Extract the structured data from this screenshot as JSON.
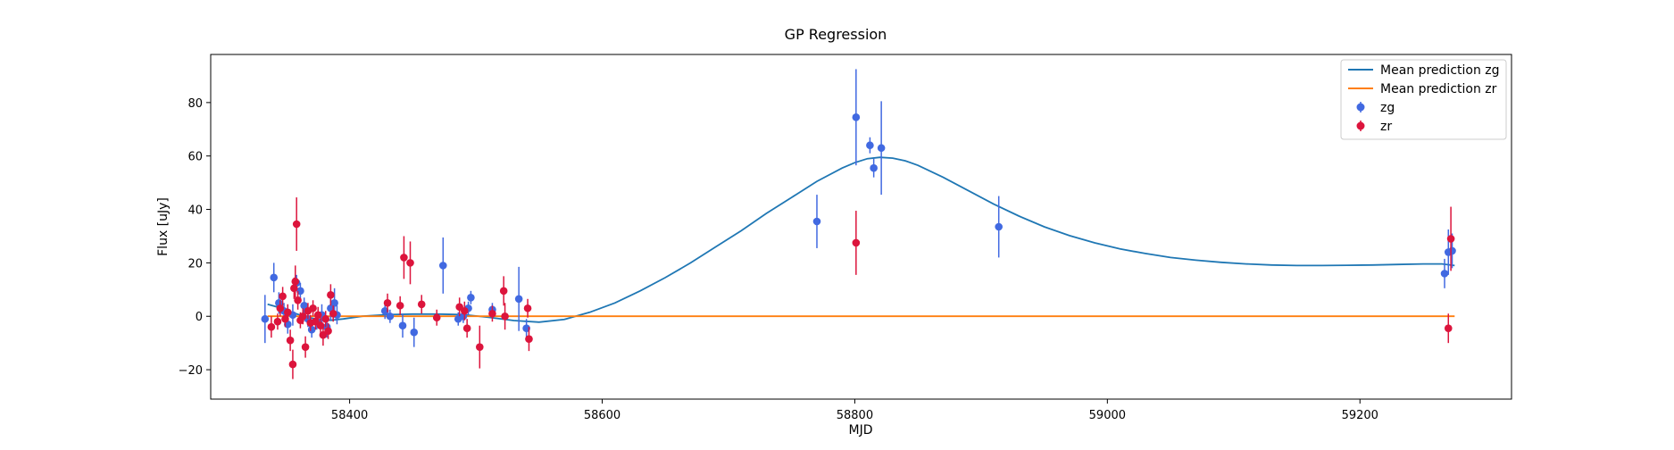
{
  "chart_data": {
    "type": "scatter",
    "title": "GP Regression",
    "xlabel": "MJD",
    "ylabel": "Flux [uJy]",
    "xlim": [
      58290,
      59320
    ],
    "ylim": [
      -31,
      98
    ],
    "x_ticks": [
      58400,
      58600,
      58800,
      59000,
      59200
    ],
    "y_ticks": [
      -20,
      0,
      20,
      40,
      60,
      80
    ],
    "grid": false,
    "legend_position": "top-right",
    "legend": [
      "Mean prediction zg",
      "Mean prediction zr",
      "zg",
      "zr"
    ],
    "colors": {
      "zg_line": "#1f77b4",
      "zr_line": "#ff7f0e",
      "zg_points": "#4169e1",
      "zr_points": "#dc143c"
    },
    "series": [
      {
        "name": "Mean prediction zg",
        "kind": "line",
        "x": [
          58335,
          58345,
          58355,
          58365,
          58375,
          58385,
          58395,
          58410,
          58430,
          58450,
          58470,
          58490,
          58510,
          58530,
          58550,
          58570,
          58590,
          58610,
          58630,
          58650,
          58670,
          58690,
          58710,
          58730,
          58750,
          58770,
          58790,
          58800,
          58810,
          58820,
          58830,
          58840,
          58850,
          58870,
          58890,
          58910,
          58930,
          58950,
          58970,
          58990,
          59010,
          59030,
          59050,
          59070,
          59090,
          59110,
          59130,
          59150,
          59170,
          59190,
          59210,
          59230,
          59250,
          59265,
          59275
        ],
        "y": [
          4.5,
          3.2,
          1.4,
          -0.2,
          -1.2,
          -1.5,
          -1.0,
          0.0,
          0.6,
          0.8,
          0.8,
          0.6,
          -0.4,
          -1.6,
          -2.2,
          -1.2,
          1.5,
          5.0,
          9.5,
          14.5,
          20.0,
          26.0,
          32.0,
          38.5,
          44.5,
          50.5,
          55.5,
          57.5,
          59.0,
          59.5,
          59.2,
          58.2,
          56.5,
          52.0,
          47.0,
          42.0,
          37.5,
          33.5,
          30.2,
          27.5,
          25.2,
          23.5,
          22.0,
          21.0,
          20.2,
          19.6,
          19.2,
          19.0,
          19.0,
          19.1,
          19.2,
          19.4,
          19.6,
          19.6,
          19.0
        ]
      },
      {
        "name": "Mean prediction zr",
        "kind": "line",
        "x": [
          58335,
          58400,
          58600,
          58800,
          59000,
          59200,
          59275
        ],
        "y": [
          0,
          0,
          0,
          0,
          0,
          0,
          0
        ]
      },
      {
        "name": "zg",
        "kind": "errorbar",
        "points": [
          {
            "x": 58333,
            "y": -1.0,
            "err": 9.0
          },
          {
            "x": 58340,
            "y": 14.5,
            "err": 5.5
          },
          {
            "x": 58344,
            "y": 5.0,
            "err": 4.0
          },
          {
            "x": 58348,
            "y": 2.0,
            "err": 3.0
          },
          {
            "x": 58351,
            "y": -3.0,
            "err": 3.5
          },
          {
            "x": 58355,
            "y": 0.5,
            "err": 4.0
          },
          {
            "x": 58358,
            "y": 12.5,
            "err": 3.0
          },
          {
            "x": 58361,
            "y": 9.5,
            "err": 3.0
          },
          {
            "x": 58364,
            "y": 4.0,
            "err": 3.0
          },
          {
            "x": 58367,
            "y": -1.0,
            "err": 3.0
          },
          {
            "x": 58370,
            "y": -5.0,
            "err": 3.0
          },
          {
            "x": 58374,
            "y": -2.0,
            "err": 3.0
          },
          {
            "x": 58378,
            "y": 0.5,
            "err": 4.0
          },
          {
            "x": 58382,
            "y": -4.0,
            "err": 4.0
          },
          {
            "x": 58385,
            "y": 3.0,
            "err": 4.5
          },
          {
            "x": 58388,
            "y": 5.0,
            "err": 5.5
          },
          {
            "x": 58390,
            "y": 0.5,
            "err": 3.5
          },
          {
            "x": 58428,
            "y": 2.0,
            "err": 3.0
          },
          {
            "x": 58432,
            "y": 0.0,
            "err": 2.5
          },
          {
            "x": 58442,
            "y": -3.5,
            "err": 4.5
          },
          {
            "x": 58451,
            "y": -6.0,
            "err": 5.5
          },
          {
            "x": 58474,
            "y": 19.0,
            "err": 10.5
          },
          {
            "x": 58486,
            "y": -1.0,
            "err": 2.5
          },
          {
            "x": 58490,
            "y": 0.0,
            "err": 2.5
          },
          {
            "x": 58494,
            "y": 3.0,
            "err": 2.5
          },
          {
            "x": 58496,
            "y": 7.0,
            "err": 2.5
          },
          {
            "x": 58513,
            "y": 2.5,
            "err": 2.5
          },
          {
            "x": 58534,
            "y": 6.5,
            "err": 12.0
          },
          {
            "x": 58540,
            "y": -4.5,
            "err": 3.5
          },
          {
            "x": 58770,
            "y": 35.5,
            "err": 10.0
          },
          {
            "x": 58801,
            "y": 74.5,
            "err": 18.0
          },
          {
            "x": 58812,
            "y": 64.0,
            "err": 3.0
          },
          {
            "x": 58815,
            "y": 55.5,
            "err": 3.5
          },
          {
            "x": 58821,
            "y": 63.0,
            "err": 17.5
          },
          {
            "x": 58914,
            "y": 33.5,
            "err": 11.5
          },
          {
            "x": 59267,
            "y": 16.0,
            "err": 5.5
          },
          {
            "x": 59270,
            "y": 24.0,
            "err": 8.5
          },
          {
            "x": 59273,
            "y": 24.5,
            "err": 6.5
          }
        ]
      },
      {
        "name": "zr",
        "kind": "errorbar",
        "points": [
          {
            "x": 58338,
            "y": -4.0,
            "err": 4.0
          },
          {
            "x": 58343,
            "y": -2.0,
            "err": 3.0
          },
          {
            "x": 58345,
            "y": 3.0,
            "err": 3.0
          },
          {
            "x": 58347,
            "y": 7.5,
            "err": 3.5
          },
          {
            "x": 58349,
            "y": -1.0,
            "err": 3.0
          },
          {
            "x": 58351,
            "y": 1.5,
            "err": 3.0
          },
          {
            "x": 58353,
            "y": -9.0,
            "err": 4.0
          },
          {
            "x": 58355,
            "y": -18.0,
            "err": 5.5
          },
          {
            "x": 58356,
            "y": 10.5,
            "err": 4.0
          },
          {
            "x": 58357,
            "y": 13.0,
            "err": 6.0
          },
          {
            "x": 58358,
            "y": 34.5,
            "err": 10.0
          },
          {
            "x": 58359,
            "y": 6.0,
            "err": 3.5
          },
          {
            "x": 58361,
            "y": -1.5,
            "err": 3.0
          },
          {
            "x": 58363,
            "y": 0.0,
            "err": 3.0
          },
          {
            "x": 58365,
            "y": -11.5,
            "err": 4.0
          },
          {
            "x": 58367,
            "y": 2.0,
            "err": 3.0
          },
          {
            "x": 58369,
            "y": -2.5,
            "err": 3.0
          },
          {
            "x": 58371,
            "y": 3.0,
            "err": 3.0
          },
          {
            "x": 58373,
            "y": -2.0,
            "err": 3.0
          },
          {
            "x": 58375,
            "y": 0.5,
            "err": 3.0
          },
          {
            "x": 58377,
            "y": -3.5,
            "err": 3.0
          },
          {
            "x": 58379,
            "y": -7.0,
            "err": 4.0
          },
          {
            "x": 58381,
            "y": -1.0,
            "err": 3.0
          },
          {
            "x": 58383,
            "y": -5.5,
            "err": 3.0
          },
          {
            "x": 58385,
            "y": 8.0,
            "err": 4.0
          },
          {
            "x": 58387,
            "y": 1.0,
            "err": 3.0
          },
          {
            "x": 58430,
            "y": 5.0,
            "err": 3.5
          },
          {
            "x": 58440,
            "y": 4.0,
            "err": 3.5
          },
          {
            "x": 58443,
            "y": 22.0,
            "err": 8.0
          },
          {
            "x": 58448,
            "y": 20.0,
            "err": 8.0
          },
          {
            "x": 58457,
            "y": 4.5,
            "err": 3.5
          },
          {
            "x": 58469,
            "y": -0.5,
            "err": 3.0
          },
          {
            "x": 58487,
            "y": 3.5,
            "err": 3.5
          },
          {
            "x": 58491,
            "y": 2.0,
            "err": 3.5
          },
          {
            "x": 58493,
            "y": -4.5,
            "err": 3.5
          },
          {
            "x": 58503,
            "y": -11.5,
            "err": 8.0
          },
          {
            "x": 58513,
            "y": 1.0,
            "err": 3.0
          },
          {
            "x": 58522,
            "y": 9.5,
            "err": 5.5
          },
          {
            "x": 58523,
            "y": 0.0,
            "err": 5.0
          },
          {
            "x": 58541,
            "y": 3.0,
            "err": 3.5
          },
          {
            "x": 58542,
            "y": -8.5,
            "err": 4.5
          },
          {
            "x": 58801,
            "y": 27.5,
            "err": 12.0
          },
          {
            "x": 59270,
            "y": -4.5,
            "err": 5.5
          },
          {
            "x": 59272,
            "y": 29.0,
            "err": 12.0
          }
        ]
      }
    ]
  }
}
